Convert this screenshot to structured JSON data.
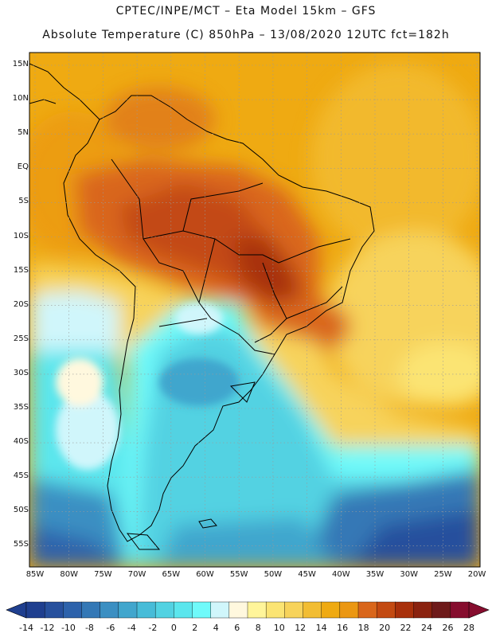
{
  "header": {
    "title_line1": "CPTEC/INPE/MCT –  Eta Model 15km – GFS",
    "title_line2": "Absolute Temperature (C) 850hPa – 13/08/2020 12UTC fct=182h"
  },
  "lat_labels": [
    "15N",
    "10N",
    "5N",
    "EQ",
    "5S",
    "10S",
    "15S",
    "20S",
    "25S",
    "30S",
    "35S",
    "40S",
    "45S",
    "50S",
    "55S"
  ],
  "lon_labels": [
    "85W",
    "80W",
    "75W",
    "70W",
    "65W",
    "60W",
    "55W",
    "50W",
    "45W",
    "40W",
    "35W",
    "30W",
    "25W",
    "20W"
  ],
  "colorbar": {
    "tick_labels": [
      "-14",
      "-12",
      "-10",
      "-8",
      "-6",
      "-4",
      "-2",
      "0",
      "2",
      "4",
      "6",
      "8",
      "10",
      "12",
      "14",
      "16",
      "18",
      "20",
      "22",
      "24",
      "26",
      "28"
    ],
    "colors": [
      "#1f3f8f",
      "#27509d",
      "#2d62ab",
      "#3478b6",
      "#3b8fc2",
      "#41a6cd",
      "#47bcd8",
      "#52d2e2",
      "#5be6ed",
      "#6ffafa",
      "#d0f6fb",
      "#fff8de",
      "#fff59a",
      "#fbe473",
      "#f7d35b",
      "#f2bd33",
      "#efaa12",
      "#eb9712",
      "#d9661b",
      "#c34a12",
      "#a8300b",
      "#8a220f",
      "#6e1a1a",
      "#860d2e"
    ]
  }
}
